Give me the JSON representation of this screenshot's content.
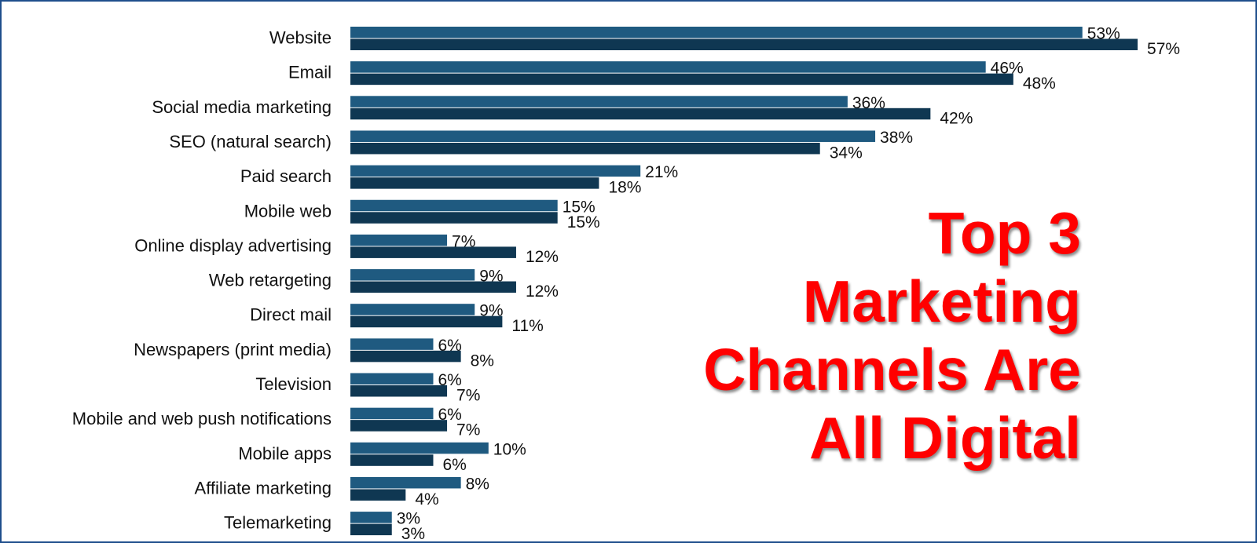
{
  "headline": {
    "line1": "Top 3",
    "line2": "Marketing",
    "line3": "Channels Are",
    "line4": "All Digital",
    "color": "#ff0000"
  },
  "chart_data": {
    "type": "bar",
    "orientation": "horizontal",
    "title": "",
    "xlabel": "",
    "ylabel": "",
    "xlim": [
      0,
      60
    ],
    "grid": false,
    "legend": "none",
    "categories": [
      "Website",
      "Email",
      "Social media marketing",
      "SEO (natural search)",
      "Paid search",
      "Mobile web",
      "Online display advertising",
      "Web retargeting",
      "Direct mail",
      "Newspapers (print media)",
      "Television",
      "Mobile and web push notifications",
      "Mobile apps",
      "Affiliate marketing",
      "Telemarketing"
    ],
    "series": [
      {
        "color": "#1f5a80",
        "values": [
          53,
          46,
          36,
          38,
          21,
          15,
          7,
          9,
          9,
          6,
          6,
          6,
          10,
          8,
          3
        ],
        "labels": [
          "53%",
          "46%",
          "36%",
          "38%",
          "21%",
          "15%",
          "7%",
          "9%",
          "9%",
          "6%",
          "6%",
          "6%",
          "10%",
          "8%",
          "3%"
        ]
      },
      {
        "color": "#0f3752",
        "values": [
          57,
          48,
          42,
          34,
          18,
          15,
          12,
          12,
          11,
          8,
          7,
          7,
          6,
          4,
          3
        ],
        "labels": [
          "57%",
          "48%",
          "42%",
          "34%",
          "18%",
          "15%",
          "12%",
          "12%",
          "11%",
          "8%",
          "7%",
          "7%",
          "6%",
          "4%",
          "3%"
        ]
      }
    ]
  }
}
